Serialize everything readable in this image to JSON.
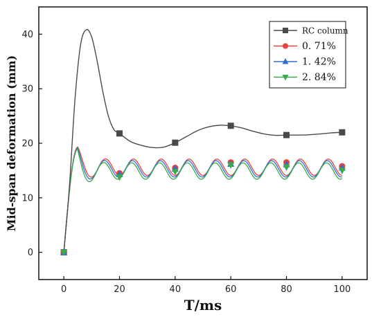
{
  "chart_data": {
    "type": "line",
    "xlabel": "T/ms",
    "ylabel": "Mid-span deformation (mm)",
    "xlim": [
      -9,
      109
    ],
    "ylim": [
      -5,
      45
    ],
    "xticks": [
      0,
      20,
      40,
      60,
      80,
      100
    ],
    "yticks": [
      0,
      10,
      20,
      30,
      40
    ],
    "grid": false,
    "legend": "top-right",
    "series": [
      {
        "name": "RC column",
        "color": "#4a4a4a",
        "marker": "square",
        "x": [
          0,
          20,
          40,
          60,
          80,
          100
        ],
        "y": [
          0,
          21.8,
          20.1,
          23.2,
          21.5,
          22.0
        ],
        "curve_x": [
          0,
          2,
          4,
          6,
          8,
          10,
          12,
          14,
          16,
          18,
          20,
          24,
          28,
          32,
          36,
          40,
          44,
          48,
          52,
          56,
          60,
          64,
          68,
          72,
          76,
          80,
          84,
          88,
          92,
          96,
          100
        ],
        "curve_y": [
          0,
          12,
          28,
          38,
          40.8,
          39.5,
          35,
          29.5,
          25,
          22.5,
          21.8,
          20.3,
          19.6,
          19.2,
          19.3,
          20.1,
          21.2,
          22.3,
          23.0,
          23.3,
          23.2,
          22.8,
          22.2,
          21.7,
          21.45,
          21.5,
          21.5,
          21.55,
          21.7,
          21.9,
          22.0
        ]
      },
      {
        "name": "0. 71%",
        "color": "#e8413c",
        "marker": "circle",
        "x": [
          0,
          20,
          40,
          60,
          80,
          100
        ],
        "y": [
          0,
          14.5,
          15.5,
          16.5,
          16.5,
          15.8
        ]
      },
      {
        "name": "1. 42%",
        "color": "#2f6fd4",
        "marker": "triangle-up",
        "x": [
          0,
          20,
          40,
          60,
          80,
          100
        ],
        "y": [
          0,
          14.3,
          15.3,
          16.2,
          16.1,
          15.5
        ]
      },
      {
        "name": "2. 84%",
        "color": "#3aaa4a",
        "marker": "triangle-down",
        "x": [
          0,
          20,
          40,
          60,
          80,
          100
        ],
        "y": [
          0,
          13.8,
          14.8,
          16.0,
          15.6,
          15.0
        ]
      }
    ],
    "oscillation": {
      "period": 10,
      "amplitudes": [
        1.5,
        1.5,
        1.5
      ],
      "means": [
        15.6,
        15.3,
        14.9
      ],
      "phase_shift": [
        0,
        -0.3,
        -0.6
      ],
      "peak": [
        19.3,
        19.1,
        18.9
      ]
    }
  }
}
